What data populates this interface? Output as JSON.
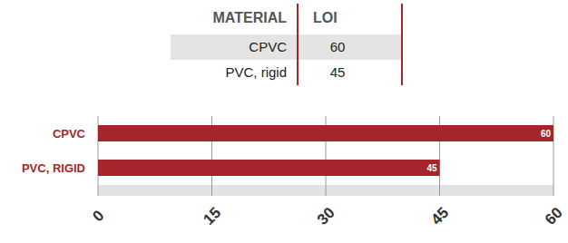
{
  "table": {
    "columns": [
      "MATERIAL",
      "LOI"
    ],
    "rows": [
      [
        "CPVC",
        60
      ],
      [
        "PVC, rigid",
        45
      ]
    ]
  },
  "chart_data": {
    "type": "bar",
    "orientation": "horizontal",
    "categories": [
      "CPVC",
      "PVC, RIGID"
    ],
    "values": [
      60,
      45
    ],
    "color": "#a4262c",
    "xlim": [
      0,
      60
    ],
    "xticks": [
      0,
      15,
      30,
      45,
      60
    ],
    "grid": true,
    "data_labels": true
  }
}
